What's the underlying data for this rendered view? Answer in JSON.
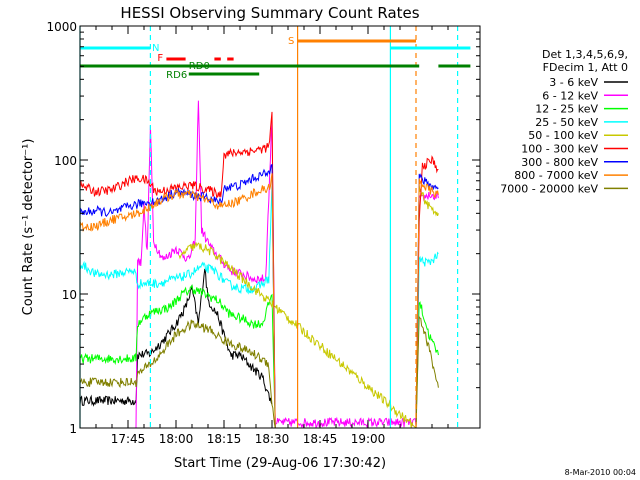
{
  "chart_data": {
    "type": "line",
    "title": "HESSI Observing Summary Count Rates",
    "xlabel": "Start Time (29-Aug-06 17:30:42)",
    "ylabel": "Count Rate (s⁻¹ detector⁻¹)",
    "xunit": "minutes after 17:30:42",
    "xlim": [
      0,
      125
    ],
    "ylim": [
      1,
      1000
    ],
    "yscale": "log",
    "x_ticks": [
      {
        "t": 15,
        "label": "17:45"
      },
      {
        "t": 30,
        "label": "18:00"
      },
      {
        "t": 45,
        "label": "18:15"
      },
      {
        "t": 60,
        "label": "18:30"
      },
      {
        "t": 75,
        "label": "18:45"
      },
      {
        "t": 90,
        "label": "19:00"
      }
    ],
    "y_ticks": [
      {
        "v": 1,
        "label": "1"
      },
      {
        "v": 10,
        "label": "10"
      },
      {
        "v": 100,
        "label": "100"
      },
      {
        "v": 1000,
        "label": "1000"
      }
    ],
    "legend": {
      "position": "right",
      "header": [
        "Det 1,3,4,5,6,9,",
        "FDecim 1, Att 0"
      ]
    },
    "series": [
      {
        "name": "3 - 6 keV",
        "color": "#000000",
        "points": [
          [
            0,
            1.6
          ],
          [
            17.5,
            1.6
          ],
          [
            18,
            3.5
          ],
          [
            22,
            3.6
          ],
          [
            26,
            4.5
          ],
          [
            30,
            6
          ],
          [
            33,
            8
          ],
          [
            35,
            11
          ],
          [
            37,
            6
          ],
          [
            39,
            16
          ],
          [
            40,
            9
          ],
          [
            43,
            7
          ],
          [
            47,
            3.5
          ],
          [
            50,
            3.5
          ],
          [
            54,
            2.8
          ],
          [
            57,
            2.4
          ],
          [
            60,
            1.5
          ]
        ]
      },
      {
        "name": "6 - 12 keV",
        "color": "#ff00ff",
        "points": [
          [
            0,
            1
          ],
          [
            17.5,
            1
          ],
          [
            18,
            18
          ],
          [
            19,
            17
          ],
          [
            20,
            45
          ],
          [
            21,
            20
          ],
          [
            22,
            180
          ],
          [
            23,
            25
          ],
          [
            26,
            18
          ],
          [
            30,
            22
          ],
          [
            34,
            18
          ],
          [
            36,
            25
          ],
          [
            37,
            300
          ],
          [
            38,
            30
          ],
          [
            41,
            22
          ],
          [
            44,
            18
          ],
          [
            47,
            15
          ],
          [
            51,
            14
          ],
          [
            54,
            13
          ],
          [
            58,
            13
          ],
          [
            60,
            210
          ],
          [
            61,
            1.1
          ],
          [
            105,
            1.1
          ],
          [
            106,
            50
          ],
          [
            109,
            55
          ],
          [
            112,
            52
          ]
        ]
      },
      {
        "name": "12 - 25 keV",
        "color": "#00ff00",
        "points": [
          [
            0,
            3.3
          ],
          [
            17.5,
            3.3
          ],
          [
            18,
            6
          ],
          [
            21,
            7
          ],
          [
            24,
            7.5
          ],
          [
            28,
            8
          ],
          [
            32,
            10
          ],
          [
            35,
            11
          ],
          [
            39,
            10
          ],
          [
            43,
            9
          ],
          [
            47,
            7
          ],
          [
            51,
            6.5
          ],
          [
            54,
            6
          ],
          [
            57,
            6
          ],
          [
            60,
            10
          ],
          [
            61,
            1
          ],
          [
            105,
            1
          ],
          [
            106,
            9
          ],
          [
            109,
            5
          ],
          [
            112,
            3.5
          ]
        ]
      },
      {
        "name": "25 - 50 keV",
        "color": "#00ffff",
        "points": [
          [
            0,
            17
          ],
          [
            5,
            14
          ],
          [
            10,
            14
          ],
          [
            17,
            15
          ],
          [
            18,
            12
          ],
          [
            24,
            12
          ],
          [
            30,
            13
          ],
          [
            34,
            14
          ],
          [
            38,
            16
          ],
          [
            42,
            15
          ],
          [
            46,
            12
          ],
          [
            50,
            11
          ],
          [
            55,
            11
          ],
          [
            59,
            13
          ],
          [
            60,
            65
          ],
          [
            61,
            1
          ],
          [
            105,
            1
          ],
          [
            106,
            18
          ],
          [
            109,
            17
          ],
          [
            112,
            20
          ]
        ]
      },
      {
        "name": "50 - 100 keV",
        "color": "#c8c800",
        "points": [
          [
            31,
            18
          ],
          [
            33,
            21
          ],
          [
            36,
            23
          ],
          [
            39,
            22
          ],
          [
            42,
            20
          ],
          [
            44,
            18
          ],
          [
            105,
            1
          ],
          [
            106,
            60
          ],
          [
            109,
            45
          ],
          [
            112,
            40
          ]
        ]
      },
      {
        "name": "100 - 300 keV",
        "color": "#ff0000",
        "points": [
          [
            0,
            65
          ],
          [
            5,
            58
          ],
          [
            10,
            60
          ],
          [
            15,
            70
          ],
          [
            17,
            72
          ],
          [
            19,
            73
          ],
          [
            21,
            70
          ],
          [
            24,
            58
          ],
          [
            30,
            62
          ],
          [
            35,
            65
          ],
          [
            40,
            60
          ],
          [
            44,
            55
          ],
          [
            45,
            110
          ],
          [
            50,
            115
          ],
          [
            55,
            118
          ],
          [
            59,
            125
          ],
          [
            60,
            215
          ],
          [
            61,
            1
          ],
          [
            105,
            1
          ],
          [
            106,
            35
          ],
          [
            107,
            90
          ],
          [
            110,
            100
          ],
          [
            112,
            85
          ]
        ]
      },
      {
        "name": "300 - 800 keV",
        "color": "#0000ff",
        "points": [
          [
            0,
            40
          ],
          [
            5,
            42
          ],
          [
            10,
            40
          ],
          [
            15,
            45
          ],
          [
            20,
            48
          ],
          [
            25,
            50
          ],
          [
            30,
            58
          ],
          [
            35,
            55
          ],
          [
            40,
            52
          ],
          [
            44,
            48
          ],
          [
            45,
            62
          ],
          [
            50,
            65
          ],
          [
            55,
            75
          ],
          [
            59,
            80
          ],
          [
            60,
            100
          ],
          [
            61,
            1
          ],
          [
            105,
            1
          ],
          [
            106,
            75
          ],
          [
            109,
            65
          ],
          [
            112,
            62
          ]
        ]
      },
      {
        "name": "800 - 7000 keV",
        "color": "#ff8000",
        "points": [
          [
            0,
            32
          ],
          [
            5,
            32
          ],
          [
            10,
            36
          ],
          [
            15,
            38
          ],
          [
            20,
            42
          ],
          [
            25,
            50
          ],
          [
            30,
            56
          ],
          [
            35,
            55
          ],
          [
            40,
            50
          ],
          [
            44,
            45
          ],
          [
            50,
            50
          ],
          [
            55,
            58
          ],
          [
            59,
            62
          ],
          [
            60,
            75
          ],
          [
            61,
            1
          ],
          [
            105,
            1
          ],
          [
            106,
            70
          ],
          [
            109,
            60
          ],
          [
            112,
            55
          ]
        ]
      },
      {
        "name": "7000 - 20000 keV",
        "color": "#808000",
        "points": [
          [
            0,
            2.2
          ],
          [
            17.5,
            2.2
          ],
          [
            18,
            2.5
          ],
          [
            24,
            3.3
          ],
          [
            30,
            5
          ],
          [
            35,
            6
          ],
          [
            40,
            5.5
          ],
          [
            45,
            4.5
          ],
          [
            50,
            4
          ],
          [
            55,
            3.5
          ],
          [
            59,
            3
          ],
          [
            60,
            1.5
          ],
          [
            61,
            1
          ],
          [
            105,
            1
          ],
          [
            106,
            7
          ],
          [
            109,
            4
          ],
          [
            112,
            2
          ]
        ]
      }
    ],
    "flag_bars": [
      {
        "label": "N",
        "color": "#00ffff",
        "segments": [
          [
            0,
            22
          ]
        ]
      },
      {
        "label": "",
        "color": "#00ffff",
        "segments": [
          [
            97,
            122
          ]
        ]
      },
      {
        "label": "F",
        "color": "#ff0000",
        "segments": [
          [
            27,
            33
          ],
          [
            42,
            44
          ],
          [
            46,
            48
          ]
        ]
      },
      {
        "label": "RD0",
        "color": "#008000",
        "segments": [
          [
            0,
            106
          ],
          [
            112,
            122
          ]
        ]
      },
      {
        "label": "RD6",
        "color": "#008000",
        "segments": [
          [
            34,
            56
          ]
        ]
      },
      {
        "label": "S",
        "color": "#ff8000",
        "segments": [
          [
            68,
            105
          ]
        ]
      }
    ],
    "vertical_markers": [
      {
        "t": 0,
        "color": "#00ffff",
        "style": "solid"
      },
      {
        "t": 22,
        "color": "#00ffff",
        "style": "dashed"
      },
      {
        "t": 68,
        "color": "#ff8000",
        "style": "solid"
      },
      {
        "t": 97,
        "color": "#00ffff",
        "style": "solid"
      },
      {
        "t": 105,
        "color": "#ff8000",
        "style": "dashed"
      },
      {
        "t": 118,
        "color": "#00ffff",
        "style": "dashed"
      }
    ]
  },
  "footer": {
    "date": "8-Mar-2010 00:04"
  }
}
